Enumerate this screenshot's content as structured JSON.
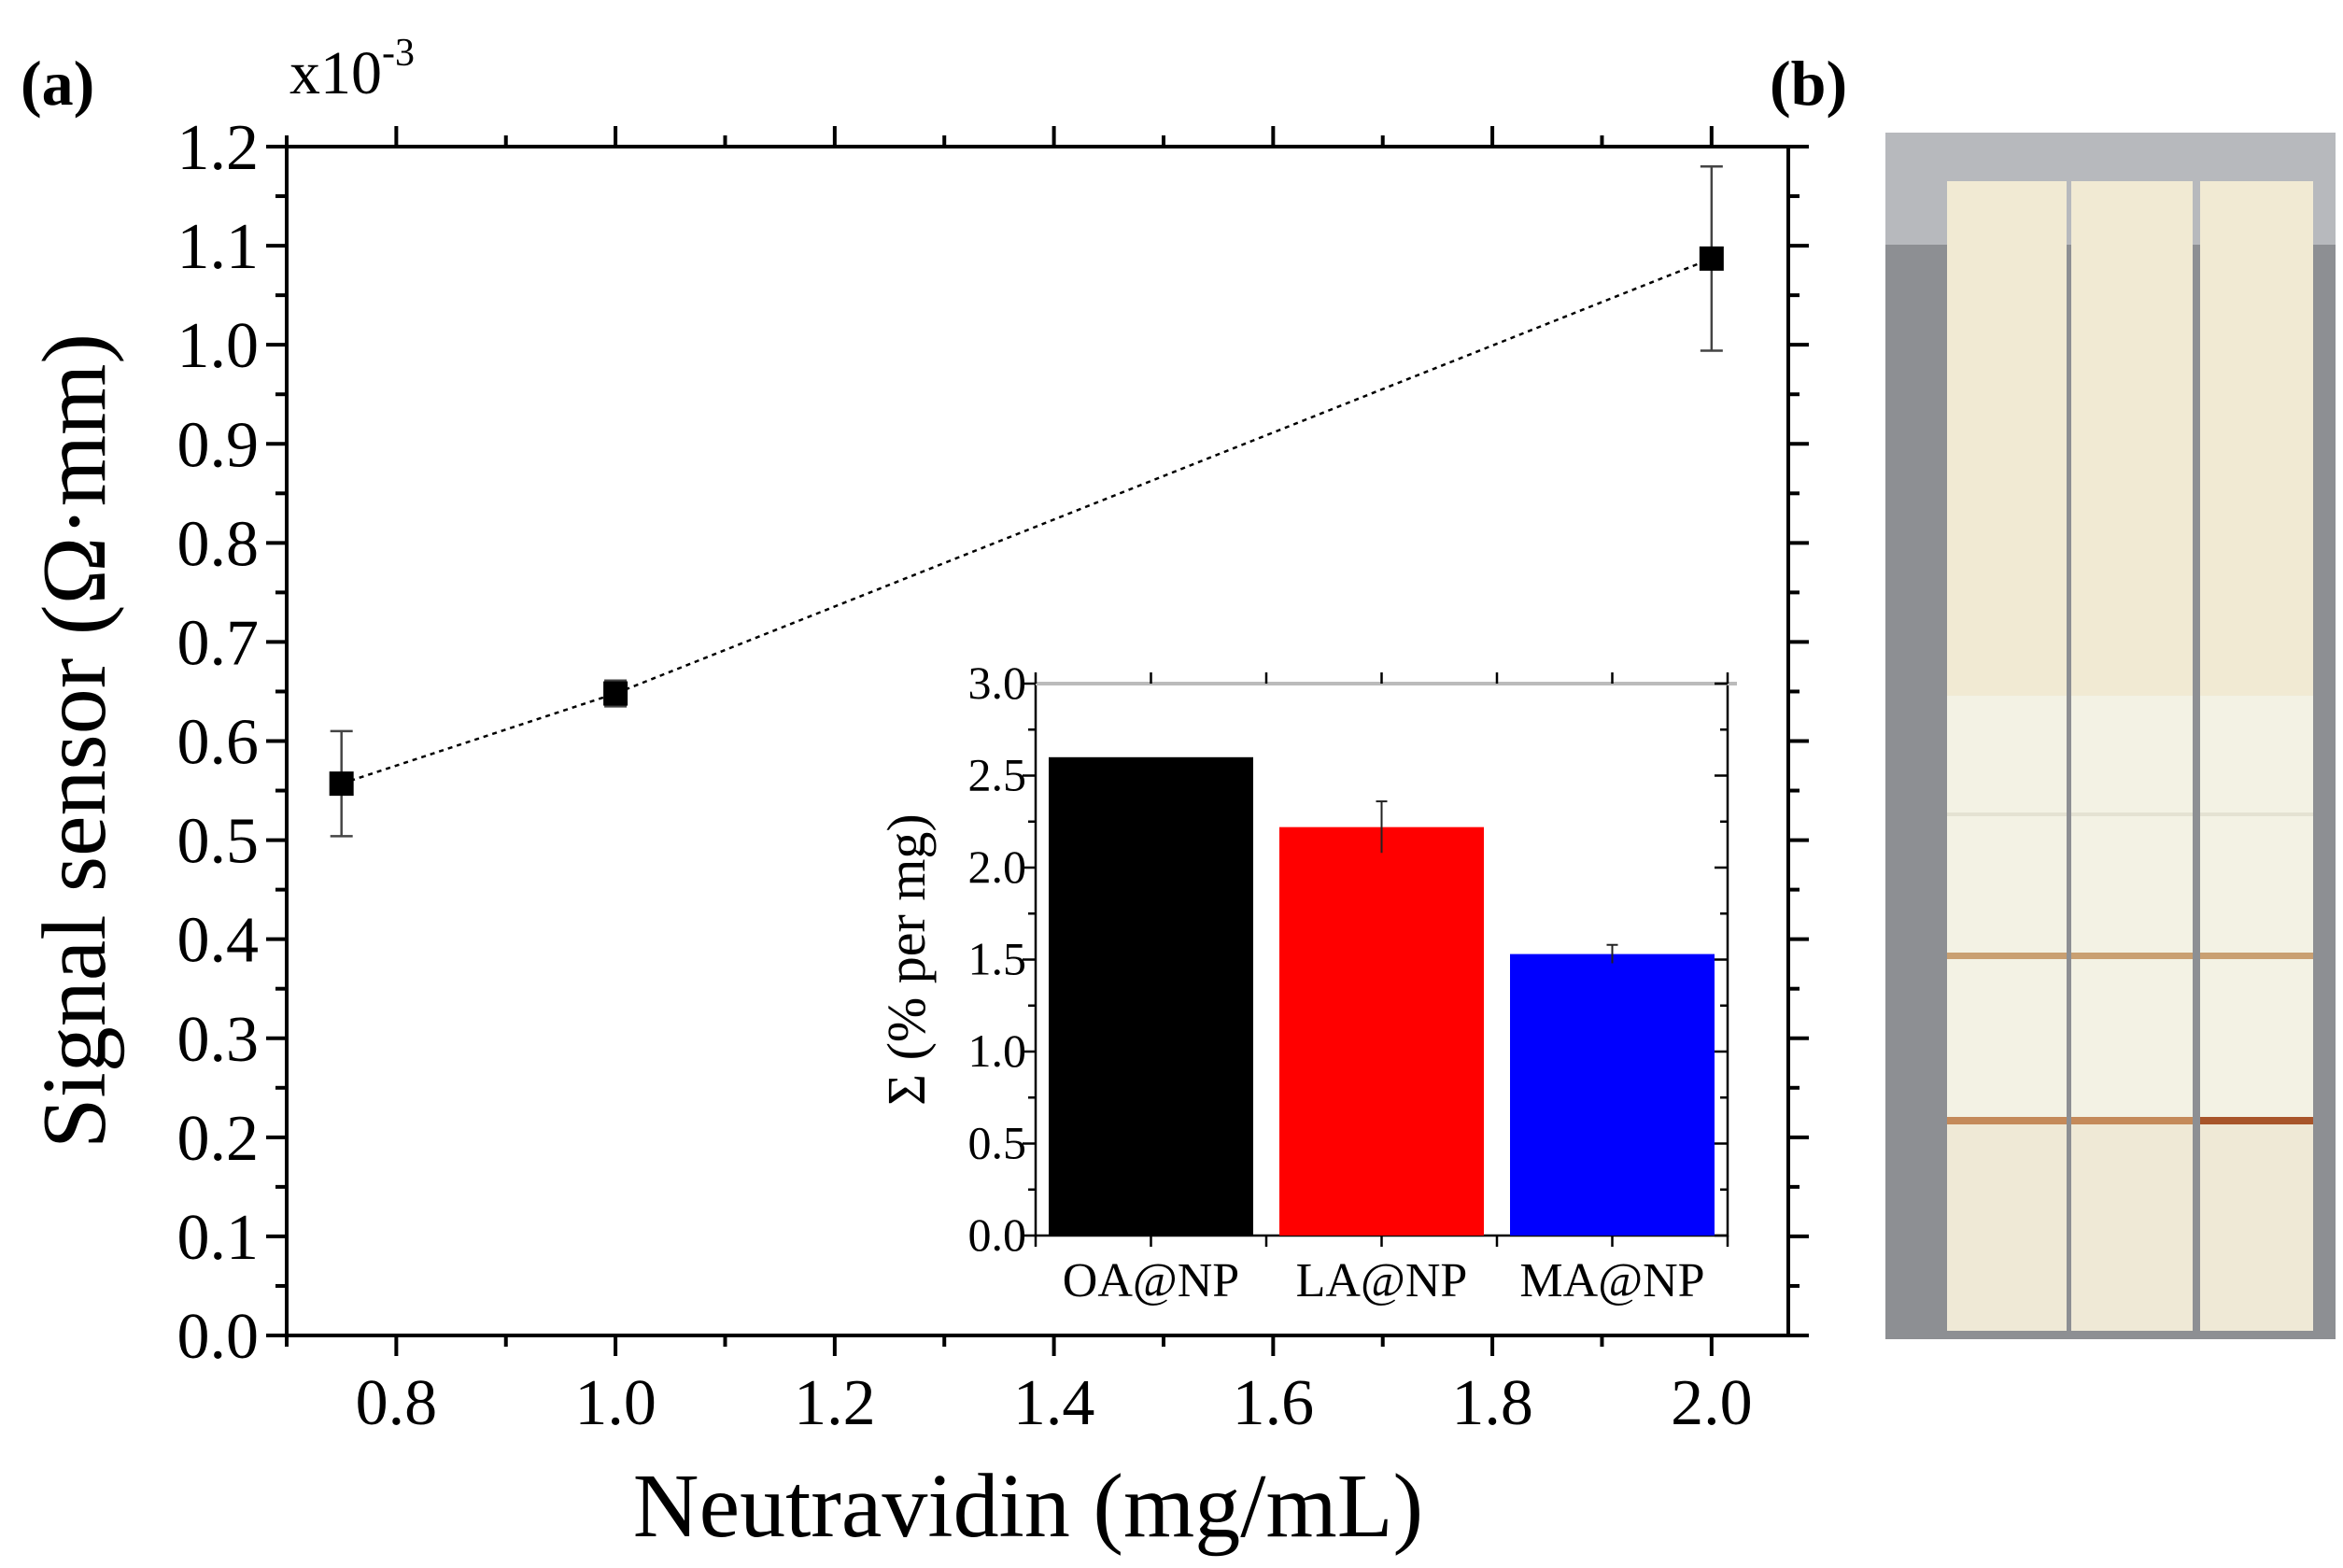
{
  "chart_data": [
    {
      "type": "scatter",
      "panel_label": "(a)",
      "multiplier": "x10",
      "multiplier_exp": "-3",
      "xlabel": "Neutravidin (mg/mL)",
      "ylabel": "Signal sensor (Ω·mm)",
      "xlim": [
        0.7,
        2.07
      ],
      "ylim": [
        0,
        1.2
      ],
      "xticks": [
        "0.8",
        "1.0",
        "1.2",
        "1.4",
        "1.6",
        "1.8",
        "2.0"
      ],
      "yticks": [
        "0.0",
        "0.1",
        "0.2",
        "0.3",
        "0.4",
        "0.5",
        "0.6",
        "0.7",
        "0.8",
        "0.9",
        "1.0",
        "1.1",
        "1.2"
      ],
      "x": [
        0.75,
        1.0,
        2.0
      ],
      "y": [
        0.557,
        0.648,
        1.087
      ],
      "yerr": [
        0.053,
        0.013,
        0.093
      ],
      "fit_line": "dotted",
      "grid": false
    },
    {
      "type": "bar",
      "inset": true,
      "categories": [
        "OA@NP",
        "LA@NP",
        "MA@NP"
      ],
      "values": [
        2.6,
        2.22,
        1.53
      ],
      "errors": [
        0,
        0.14,
        0.05
      ],
      "colors": [
        "#000000",
        "#ff0000",
        "#0000ff"
      ],
      "ylabel": "Σ (% per mg)",
      "ylim": [
        0,
        3.0
      ],
      "yticks": [
        "0.0",
        "0.5",
        "1.0",
        "1.5",
        "2.0",
        "2.5",
        "3.0"
      ],
      "grid": false
    }
  ],
  "photo": {
    "panel_label": "(b)"
  }
}
